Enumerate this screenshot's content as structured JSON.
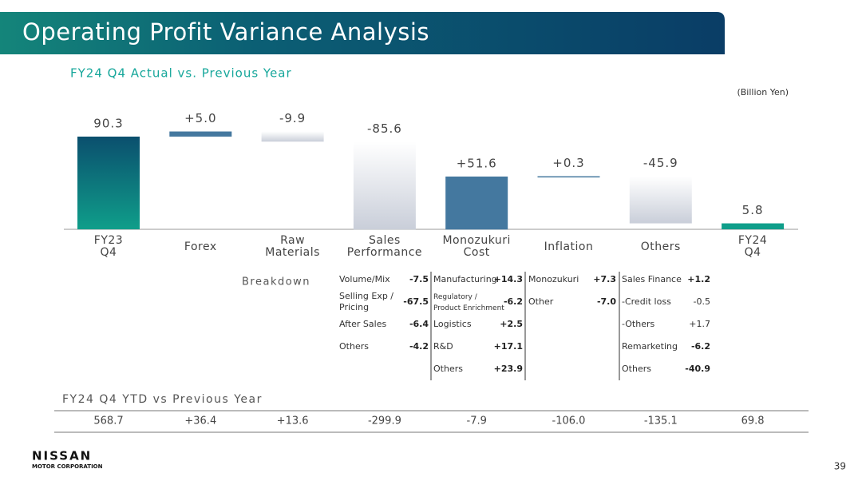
{
  "header": {
    "title": "Operating Profit Variance Analysis",
    "subtitle": "FY24 Q4 Actual vs. Previous Year",
    "unit": "(Billion Yen)"
  },
  "chart_data": {
    "type": "waterfall",
    "categories": [
      "FY23 Q4",
      "Forex",
      "Raw Materials",
      "Sales Performance",
      "Monozukuri Cost",
      "Inflation",
      "Others",
      "FY24 Q4"
    ],
    "values": [
      90.3,
      5.0,
      -9.9,
      -85.6,
      51.6,
      0.3,
      -45.9,
      5.8
    ],
    "value_labels": [
      "90.3",
      "+5.0",
      "-9.9",
      "-85.6",
      "+51.6",
      "+0.3",
      "-45.9",
      "5.8"
    ],
    "is_total": [
      true,
      false,
      false,
      false,
      false,
      false,
      false,
      true
    ],
    "colors": {
      "total": "#0f9e8a",
      "increase": "#44789f",
      "decrease": "#c9ced9"
    }
  },
  "breakdown": {
    "label": "Breakdown",
    "columns": [
      [
        {
          "label": "Volume/Mix",
          "value": "-7.5"
        },
        {
          "label": "Selling Exp / Pricing",
          "value": "-67.5"
        },
        {
          "label": "After Sales",
          "value": "-6.4"
        },
        {
          "label": "Others",
          "value": "-4.2"
        }
      ],
      [
        {
          "label": "Manufacturing",
          "value": "+14.3"
        },
        {
          "label": "Regulatory / Product Enrichment",
          "value": "-6.2"
        },
        {
          "label": "Logistics",
          "value": "+2.5"
        },
        {
          "label": "R&D",
          "value": "+17.1"
        },
        {
          "label": "Others",
          "value": "+23.9"
        }
      ],
      [
        {
          "label": "Monozukuri",
          "value": "+7.3"
        },
        {
          "label": "Other",
          "value": "-7.0"
        }
      ],
      [
        {
          "label": "Sales Finance",
          "value": "+1.2"
        },
        {
          "label": "-Credit loss",
          "value": "-0.5"
        },
        {
          "label": "-Others",
          "value": "+1.7"
        },
        {
          "label": "Remarketing",
          "value": "-6.2"
        },
        {
          "label": "Others",
          "value": "-40.9"
        }
      ]
    ]
  },
  "ytd": {
    "title": "FY24 Q4 YTD vs Previous Year",
    "values": [
      "568.7",
      "+36.4",
      "+13.6",
      "-299.9",
      "-7.9",
      "-106.0",
      "-135.1",
      "69.8"
    ]
  },
  "footer": {
    "brand": "NISSAN",
    "company": "MOTOR CORPORATION",
    "page": "39"
  }
}
